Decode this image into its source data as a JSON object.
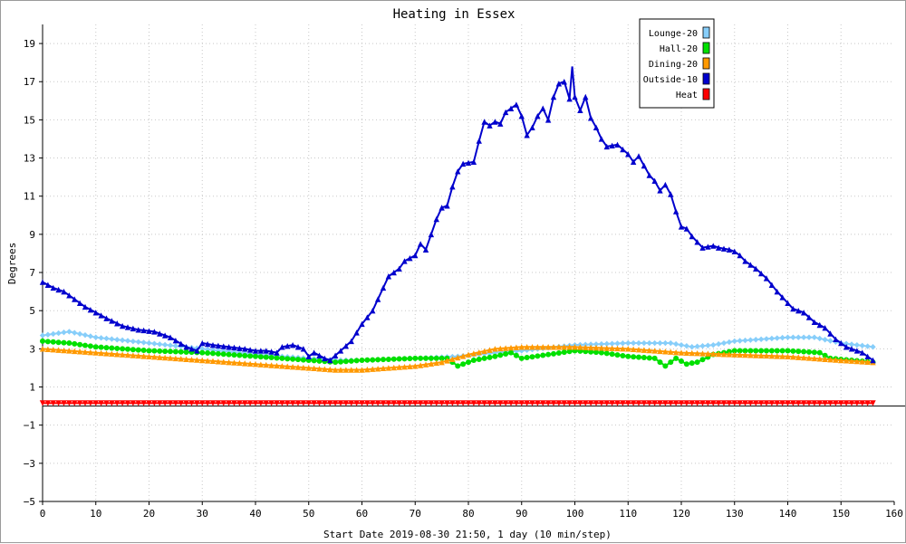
{
  "chart_data": {
    "type": "line",
    "title": "Heating in Essex",
    "xlabel": "Start Date 2019-08-30 21:50, 1 day (10 min/step)",
    "ylabel": "Degrees",
    "xlim": [
      0,
      160
    ],
    "ylim": [
      -5,
      20
    ],
    "x_ticks": [
      0,
      10,
      20,
      30,
      40,
      50,
      60,
      70,
      80,
      90,
      100,
      110,
      120,
      130,
      140,
      150,
      160
    ],
    "y_ticks": [
      19,
      17,
      15,
      13,
      11,
      9,
      7,
      5,
      3,
      1,
      -1,
      -3,
      -5
    ],
    "y_tick_labels": [
      "19",
      "17",
      "15",
      "13",
      "11",
      "9",
      "7",
      "5",
      "3",
      "1",
      "−1",
      "−3",
      "−5"
    ],
    "grid": true,
    "legend_position": "top-right",
    "series": [
      {
        "name": "Lounge-20",
        "color": "#87cefa",
        "marker": "diamond",
        "points": [
          [
            0,
            3.7
          ],
          [
            5,
            3.9
          ],
          [
            10,
            3.6
          ],
          [
            20,
            3.3
          ],
          [
            30,
            3.0
          ],
          [
            40,
            2.7
          ],
          [
            50,
            2.5
          ],
          [
            55,
            2.4
          ],
          [
            60,
            2.4
          ],
          [
            70,
            2.5
          ],
          [
            78,
            2.6
          ],
          [
            85,
            2.8
          ],
          [
            90,
            2.9
          ],
          [
            100,
            3.2
          ],
          [
            110,
            3.3
          ],
          [
            118,
            3.3
          ],
          [
            122,
            3.1
          ],
          [
            126,
            3.2
          ],
          [
            130,
            3.4
          ],
          [
            135,
            3.5
          ],
          [
            140,
            3.6
          ],
          [
            145,
            3.6
          ],
          [
            150,
            3.3
          ],
          [
            156,
            3.1
          ]
        ]
      },
      {
        "name": "Hall-20",
        "color": "#00e000",
        "marker": "circle",
        "points": [
          [
            0,
            3.4
          ],
          [
            5,
            3.3
          ],
          [
            10,
            3.1
          ],
          [
            20,
            2.9
          ],
          [
            30,
            2.8
          ],
          [
            40,
            2.6
          ],
          [
            50,
            2.4
          ],
          [
            55,
            2.3
          ],
          [
            60,
            2.4
          ],
          [
            70,
            2.5
          ],
          [
            76,
            2.5
          ],
          [
            78,
            2.1
          ],
          [
            81,
            2.4
          ],
          [
            85,
            2.6
          ],
          [
            88,
            2.8
          ],
          [
            90,
            2.5
          ],
          [
            95,
            2.7
          ],
          [
            100,
            2.9
          ],
          [
            105,
            2.8
          ],
          [
            110,
            2.6
          ],
          [
            115,
            2.5
          ],
          [
            117,
            2.1
          ],
          [
            119,
            2.5
          ],
          [
            121,
            2.2
          ],
          [
            123,
            2.3
          ],
          [
            126,
            2.7
          ],
          [
            130,
            2.9
          ],
          [
            135,
            2.9
          ],
          [
            140,
            2.9
          ],
          [
            146,
            2.8
          ],
          [
            148,
            2.5
          ],
          [
            156,
            2.3
          ]
        ]
      },
      {
        "name": "Dining-20",
        "color": "#ff9900",
        "marker": "triangle",
        "points": [
          [
            0,
            3.0
          ],
          [
            5,
            2.9
          ],
          [
            10,
            2.8
          ],
          [
            20,
            2.6
          ],
          [
            30,
            2.4
          ],
          [
            40,
            2.2
          ],
          [
            50,
            2.0
          ],
          [
            55,
            1.9
          ],
          [
            60,
            1.9
          ],
          [
            70,
            2.1
          ],
          [
            75,
            2.3
          ],
          [
            80,
            2.7
          ],
          [
            85,
            3.0
          ],
          [
            90,
            3.1
          ],
          [
            100,
            3.1
          ],
          [
            110,
            3.0
          ],
          [
            120,
            2.8
          ],
          [
            130,
            2.7
          ],
          [
            140,
            2.6
          ],
          [
            150,
            2.4
          ],
          [
            156,
            2.3
          ]
        ]
      },
      {
        "name": "Outside-10",
        "color": "#0000cd",
        "marker": "triangle",
        "points": [
          [
            0,
            6.5
          ],
          [
            2,
            6.2
          ],
          [
            4,
            6.0
          ],
          [
            6,
            5.6
          ],
          [
            8,
            5.2
          ],
          [
            10,
            4.9
          ],
          [
            12,
            4.6
          ],
          [
            15,
            4.2
          ],
          [
            18,
            4.0
          ],
          [
            21,
            3.9
          ],
          [
            24,
            3.6
          ],
          [
            27,
            3.1
          ],
          [
            29,
            2.9
          ],
          [
            30,
            3.3
          ],
          [
            32,
            3.2
          ],
          [
            35,
            3.1
          ],
          [
            38,
            3.0
          ],
          [
            40,
            2.9
          ],
          [
            42,
            2.9
          ],
          [
            44,
            2.8
          ],
          [
            45,
            3.1
          ],
          [
            47,
            3.2
          ],
          [
            49,
            3.0
          ],
          [
            50,
            2.6
          ],
          [
            51,
            2.8
          ],
          [
            53,
            2.5
          ],
          [
            54,
            2.4
          ],
          [
            56,
            2.9
          ],
          [
            58,
            3.4
          ],
          [
            60,
            4.3
          ],
          [
            62,
            5.0
          ],
          [
            63,
            5.6
          ],
          [
            64,
            6.2
          ],
          [
            65,
            6.8
          ],
          [
            67,
            7.2
          ],
          [
            68,
            7.6
          ],
          [
            70,
            7.9
          ],
          [
            71,
            8.5
          ],
          [
            72,
            8.2
          ],
          [
            73,
            9.0
          ],
          [
            74,
            9.8
          ],
          [
            75,
            10.4
          ],
          [
            76,
            10.5
          ],
          [
            77,
            11.5
          ],
          [
            78,
            12.3
          ],
          [
            79,
            12.7
          ],
          [
            81,
            12.8
          ],
          [
            82,
            13.9
          ],
          [
            83,
            14.9
          ],
          [
            84,
            14.7
          ],
          [
            85,
            14.9
          ],
          [
            86,
            14.8
          ],
          [
            87,
            15.4
          ],
          [
            89,
            15.8
          ],
          [
            90,
            15.2
          ],
          [
            91,
            14.2
          ],
          [
            92,
            14.6
          ],
          [
            93,
            15.2
          ],
          [
            94,
            15.6
          ],
          [
            95,
            15.0
          ],
          [
            96,
            16.2
          ],
          [
            97,
            16.9
          ],
          [
            98,
            17.0
          ],
          [
            99,
            16.1
          ],
          [
            99.5,
            17.8
          ],
          [
            100,
            16.2
          ],
          [
            101,
            15.5
          ],
          [
            102,
            16.2
          ],
          [
            103,
            15.1
          ],
          [
            104,
            14.6
          ],
          [
            105,
            14.0
          ],
          [
            106,
            13.6
          ],
          [
            108,
            13.7
          ],
          [
            110,
            13.2
          ],
          [
            111,
            12.8
          ],
          [
            112,
            13.1
          ],
          [
            113,
            12.6
          ],
          [
            114,
            12.1
          ],
          [
            115,
            11.8
          ],
          [
            116,
            11.3
          ],
          [
            117,
            11.6
          ],
          [
            118,
            11.1
          ],
          [
            119,
            10.2
          ],
          [
            120,
            9.4
          ],
          [
            121,
            9.3
          ],
          [
            122,
            8.9
          ],
          [
            123,
            8.6
          ],
          [
            124,
            8.3
          ],
          [
            126,
            8.4
          ],
          [
            127,
            8.3
          ],
          [
            129,
            8.2
          ],
          [
            130,
            8.1
          ],
          [
            131,
            7.9
          ],
          [
            132,
            7.6
          ],
          [
            134,
            7.2
          ],
          [
            136,
            6.7
          ],
          [
            138,
            6.0
          ],
          [
            140,
            5.4
          ],
          [
            141,
            5.1
          ],
          [
            143,
            4.9
          ],
          [
            145,
            4.4
          ],
          [
            147,
            4.1
          ],
          [
            149,
            3.5
          ],
          [
            151,
            3.1
          ],
          [
            154,
            2.8
          ],
          [
            156,
            2.4
          ]
        ]
      },
      {
        "name": "Heat",
        "color": "#ff0000",
        "marker": "triangle-down",
        "points": [
          [
            0,
            0.15
          ],
          [
            156,
            0.15
          ]
        ]
      }
    ]
  }
}
